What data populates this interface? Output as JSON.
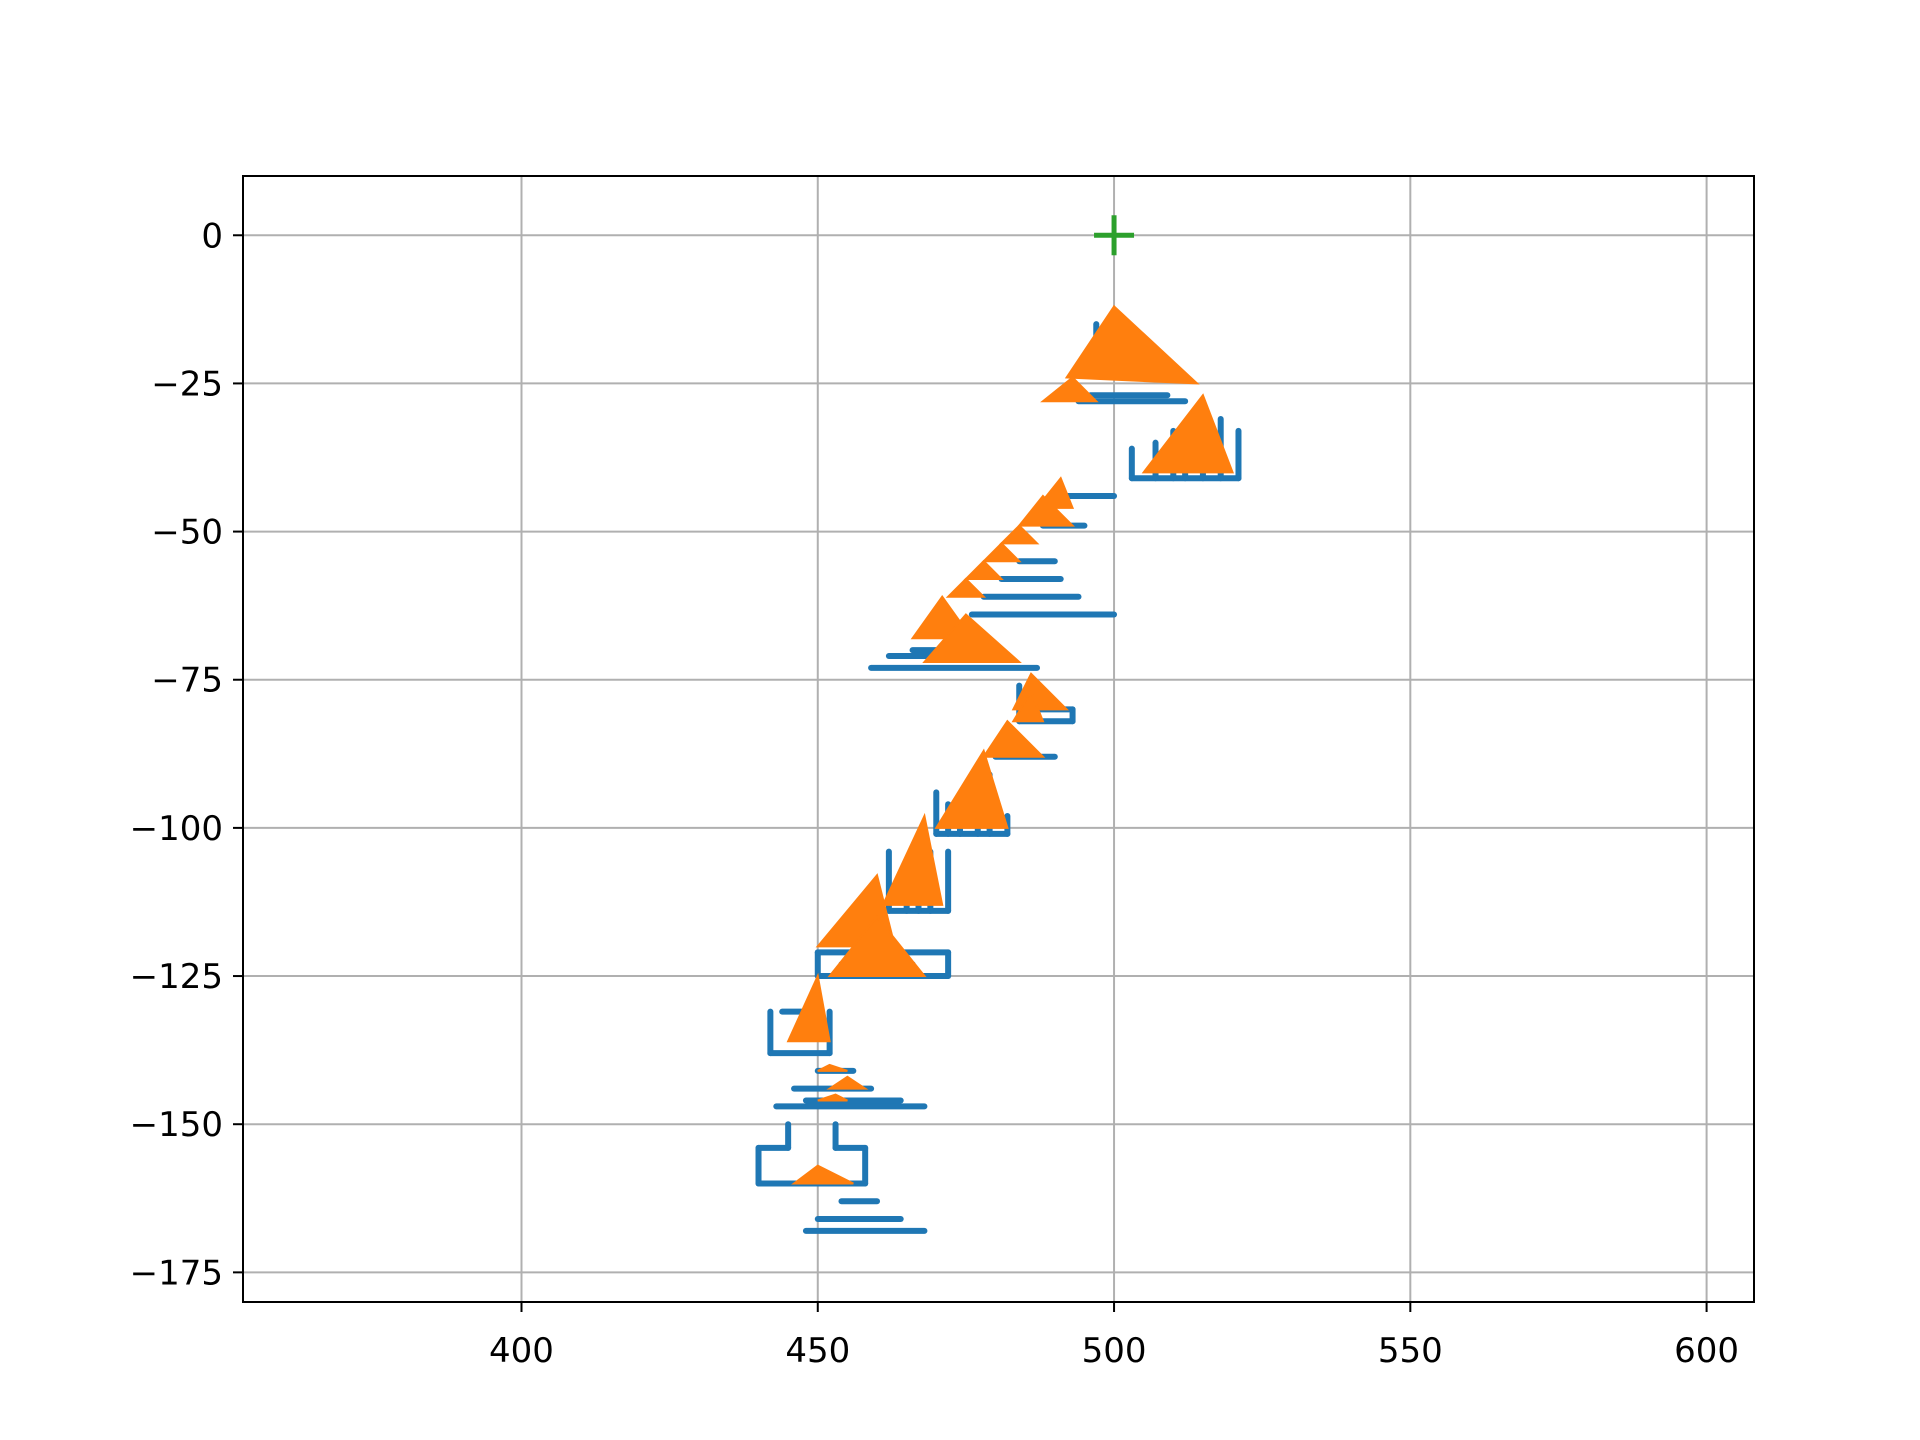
{
  "chart_data": {
    "type": "scatter",
    "title": "",
    "xlabel": "",
    "ylabel": "",
    "xlim": [
      353,
      608
    ],
    "ylim": [
      -180,
      10
    ],
    "grid": true,
    "x_ticks": [
      400,
      450,
      500,
      550,
      600
    ],
    "y_ticks": [
      0,
      -25,
      -50,
      -75,
      -100,
      -125,
      -150,
      -175
    ],
    "x_tick_labels": [
      "400",
      "450",
      "500",
      "550",
      "600"
    ],
    "y_tick_labels": [
      "0",
      "−25",
      "−50",
      "−75",
      "−100",
      "−125",
      "−150",
      "−175"
    ],
    "colors": {
      "blue": "#1f77b4",
      "orange": "#ff7f0e",
      "green": "#2ca02c"
    },
    "marker_point": {
      "x": 500,
      "y": 0,
      "marker": "plus",
      "color": "#2ca02c"
    },
    "blue_segments": [
      [
        496,
        -27,
        509,
        -27
      ],
      [
        494,
        -28,
        512,
        -28
      ],
      [
        497,
        -15,
        497,
        -23
      ],
      [
        497,
        -23,
        503,
        -23
      ],
      [
        503,
        -21,
        503,
        -23
      ],
      [
        503,
        -36,
        503,
        -41
      ],
      [
        503,
        -41,
        521,
        -41
      ],
      [
        521,
        -33,
        521,
        -41
      ],
      [
        507,
        -35,
        507,
        -41
      ],
      [
        510,
        -33,
        510,
        -41
      ],
      [
        512,
        -32,
        512,
        -41
      ],
      [
        515,
        -31,
        515,
        -41
      ],
      [
        518,
        -31,
        518,
        -41
      ],
      [
        491,
        -44,
        500,
        -44
      ],
      [
        488,
        -49,
        495,
        -49
      ],
      [
        484,
        -55,
        490,
        -55
      ],
      [
        481,
        -58,
        491,
        -58
      ],
      [
        478,
        -61,
        494,
        -61
      ],
      [
        476,
        -64,
        500,
        -64
      ],
      [
        466,
        -70,
        478,
        -70
      ],
      [
        462,
        -71,
        482,
        -71
      ],
      [
        459,
        -73,
        487,
        -73
      ],
      [
        484,
        -76,
        484,
        -82
      ],
      [
        484,
        -82,
        493,
        -82
      ],
      [
        493,
        -80,
        493,
        -82
      ],
      [
        484,
        -80,
        493,
        -80
      ],
      [
        480,
        -88,
        490,
        -88
      ],
      [
        470,
        -94,
        470,
        -101
      ],
      [
        470,
        -101,
        482,
        -101
      ],
      [
        482,
        -98,
        482,
        -101
      ],
      [
        472,
        -96,
        472,
        -101
      ],
      [
        474,
        -96,
        474,
        -101
      ],
      [
        477,
        -90,
        477,
        -101
      ],
      [
        479,
        -91,
        479,
        -101
      ],
      [
        462,
        -104,
        462,
        -114
      ],
      [
        462,
        -114,
        472,
        -114
      ],
      [
        472,
        -104,
        472,
        -114
      ],
      [
        465,
        -108,
        465,
        -114
      ],
      [
        467,
        -107,
        467,
        -114
      ],
      [
        469,
        -104,
        469,
        -114
      ],
      [
        450,
        -121,
        450,
        -125
      ],
      [
        450,
        -125,
        472,
        -125
      ],
      [
        472,
        -121,
        472,
        -125
      ],
      [
        450,
        -121,
        472,
        -121
      ],
      [
        454,
        -123,
        466,
        -123
      ],
      [
        442,
        -131,
        442,
        -138
      ],
      [
        442,
        -138,
        452,
        -138
      ],
      [
        452,
        -131,
        452,
        -138
      ],
      [
        444,
        -131,
        450,
        -131
      ],
      [
        450,
        -141,
        456,
        -141
      ],
      [
        446,
        -144,
        459,
        -144
      ],
      [
        448,
        -146,
        464,
        -146
      ],
      [
        443,
        -147,
        468,
        -147
      ],
      [
        440,
        -154,
        440,
        -160
      ],
      [
        440,
        -160,
        458,
        -160
      ],
      [
        458,
        -154,
        458,
        -160
      ],
      [
        440,
        -154,
        445,
        -154
      ],
      [
        445,
        -150,
        445,
        -154
      ],
      [
        453,
        -150,
        453,
        -154
      ],
      [
        453,
        -154,
        458,
        -154
      ],
      [
        454,
        -163,
        460,
        -163
      ],
      [
        450,
        -166,
        464,
        -166
      ],
      [
        448,
        -168,
        468,
        -168
      ]
    ],
    "orange_triangles": [
      [
        500,
        -12,
        492,
        -24,
        514,
        -25
      ],
      [
        493,
        -24,
        488,
        -28,
        497,
        -28
      ],
      [
        515,
        -27,
        505,
        -40,
        520,
        -40
      ],
      [
        491,
        -41,
        487,
        -46,
        493,
        -46
      ],
      [
        488,
        -44,
        484,
        -49,
        493,
        -49
      ],
      [
        484,
        -49,
        481,
        -52,
        487,
        -52
      ],
      [
        481,
        -52,
        478,
        -55,
        484,
        -55
      ],
      [
        478,
        -55,
        475,
        -58,
        481,
        -58
      ],
      [
        475,
        -58,
        472,
        -61,
        478,
        -61
      ],
      [
        471,
        -61,
        466,
        -68,
        476,
        -68
      ],
      [
        475,
        -64,
        468,
        -72,
        484,
        -72
      ],
      [
        486,
        -74,
        483,
        -80,
        492,
        -80
      ],
      [
        486,
        -77,
        483,
        -82,
        488,
        -82
      ],
      [
        482,
        -82,
        478,
        -88,
        488,
        -88
      ],
      [
        478,
        -87,
        470,
        -100,
        482,
        -100
      ],
      [
        468,
        -98,
        461,
        -113,
        471,
        -113
      ],
      [
        460,
        -108,
        450,
        -120,
        463,
        -120
      ],
      [
        460,
        -115,
        452,
        -125,
        468,
        -125
      ],
      [
        450,
        -125,
        445,
        -136,
        452,
        -136
      ],
      [
        452,
        -140,
        450,
        -141,
        455,
        -141
      ],
      [
        455,
        -142,
        452,
        -144,
        458,
        -144
      ],
      [
        453,
        -145,
        450,
        -146,
        455,
        -146
      ],
      [
        450,
        -157,
        446,
        -160,
        456,
        -160
      ]
    ]
  }
}
